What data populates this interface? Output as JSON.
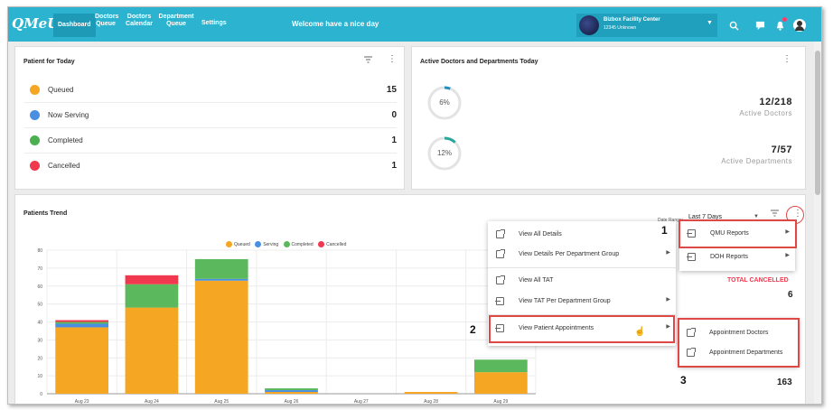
{
  "nav": {
    "logo": "QMeUp",
    "items": [
      {
        "label": "Dashboard",
        "active": true
      },
      {
        "label": "Doctors Queue"
      },
      {
        "label": "Doctors Calendar"
      },
      {
        "label": "Department Queue"
      },
      {
        "label": "Settings"
      }
    ],
    "welcome": "Welcome have a nice day",
    "facility_name": "Bizbox Facility Center",
    "facility_address": "12345 Unknown",
    "icons": [
      "search-icon",
      "chat-icon",
      "bell-icon",
      "account-icon"
    ]
  },
  "patients_today": {
    "title": "Patient for Today",
    "rows": [
      {
        "label": "Queued",
        "value": "15",
        "color": "#f5a623"
      },
      {
        "label": "Now Serving",
        "value": "0",
        "color": "#4a90e2"
      },
      {
        "label": "Completed",
        "value": "1",
        "color": "#4caf50"
      },
      {
        "label": "Cancelled",
        "value": "1",
        "color": "#f0384f"
      }
    ]
  },
  "active": {
    "title": "Active Doctors and Departments Today",
    "doctors_pct": "6%",
    "doctors_fraction": 0.06,
    "doctors_count": "12/218",
    "doctors_label": "Active Doctors",
    "departments_pct": "12%",
    "departments_fraction": 0.12,
    "departments_count": "7/57",
    "departments_label": "Active Departments",
    "ring_color": "#26a69a"
  },
  "trend": {
    "title": "Patients Trend",
    "date_range_label": "Date Range:",
    "date_range_value": "Last 7 Days",
    "side_total_cancelled_label": "TOTAL CANCELLED",
    "side_total_cancelled_value": "6",
    "side_total_value": "163"
  },
  "chart_data": {
    "type": "bar",
    "stacked": true,
    "categories": [
      "Aug 23",
      "Aug 24",
      "Aug 25",
      "Aug 26",
      "Aug 27",
      "Aug 28",
      "Aug 29"
    ],
    "series": [
      {
        "name": "Queued",
        "color": "#f5a623",
        "values": [
          37,
          48,
          63,
          1,
          0,
          1,
          12
        ]
      },
      {
        "name": "Serving",
        "color": "#4a90e2",
        "values": [
          2,
          0,
          1,
          1,
          0,
          0,
          0
        ]
      },
      {
        "name": "Completed",
        "color": "#5cb85c",
        "values": [
          1,
          13,
          11,
          1,
          0,
          0,
          7
        ]
      },
      {
        "name": "Cancelled",
        "color": "#f0384f",
        "values": [
          1,
          5,
          0,
          0,
          0,
          0,
          0
        ]
      }
    ],
    "ylim": [
      0,
      80
    ],
    "yticks": [
      0,
      10,
      20,
      30,
      40,
      50,
      60,
      70,
      80
    ],
    "grid": true,
    "legend": "top-center"
  },
  "menu_main": {
    "items": [
      {
        "label": "View All Details",
        "icon": "external-link-icon",
        "arrow": false
      },
      {
        "label": "View Details Per Department Group",
        "icon": "external-link-icon",
        "arrow": true
      },
      {
        "label": "View All TAT",
        "icon": "external-link-icon",
        "arrow": false
      },
      {
        "label": "View TAT Per Department Group",
        "icon": "import-icon",
        "arrow": true
      },
      {
        "label": "View Patient Appointments",
        "icon": "import-icon",
        "arrow": true
      }
    ]
  },
  "menu_reports": {
    "items": [
      {
        "label": "QMU Reports"
      },
      {
        "label": "DOH Reports"
      }
    ]
  },
  "menu_appointments": {
    "items": [
      {
        "label": "Appointment Doctors"
      },
      {
        "label": "Appointment Departments"
      }
    ]
  },
  "callouts": [
    "1",
    "2",
    "3"
  ],
  "highlight_color": "#e04848"
}
